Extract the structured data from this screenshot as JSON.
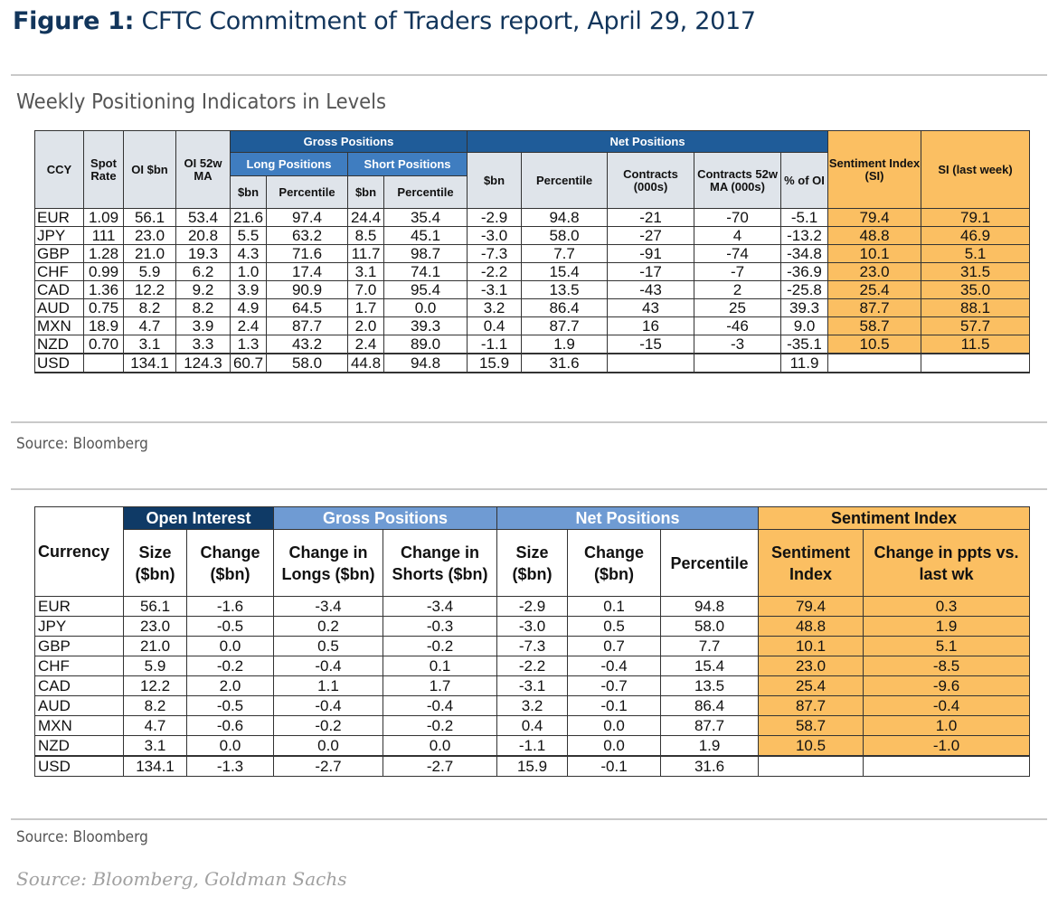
{
  "figure": {
    "label": "Figure 1:",
    "title": "CFTC Commitment of Traders report, April 29, 2017"
  },
  "table1": {
    "subtitle": "Weekly Positioning Indicators in Levels",
    "headers": {
      "ccy": "CCY",
      "spot": "Spot Rate",
      "oi": "OI $bn",
      "oi52": "OI 52w MA",
      "gross": "Gross Positions",
      "net": "Net Positions",
      "long": "Long Positions",
      "short": "Short Positions",
      "sbn": "$bn",
      "percentile": "Percentile",
      "net_sbn": "$bn",
      "net_pct": "Percentile",
      "contracts": "Contracts (000s)",
      "contracts52": "Contracts 52w MA (000s)",
      "pct_oi": "% of OI",
      "si": "Sentiment Index (SI)",
      "si_last": "SI (last week)"
    },
    "rows": [
      [
        "EUR",
        "1.09",
        "56.1",
        "53.4",
        "21.6",
        "97.4",
        "24.4",
        "35.4",
        "-2.9",
        "94.8",
        "-21",
        "-70",
        "-5.1",
        "79.4",
        "79.1"
      ],
      [
        "JPY",
        "111",
        "23.0",
        "20.8",
        "5.5",
        "63.2",
        "8.5",
        "45.1",
        "-3.0",
        "58.0",
        "-27",
        "4",
        "-13.2",
        "48.8",
        "46.9"
      ],
      [
        "GBP",
        "1.28",
        "21.0",
        "19.3",
        "4.3",
        "71.6",
        "11.7",
        "98.7",
        "-7.3",
        "7.7",
        "-91",
        "-74",
        "-34.8",
        "10.1",
        "5.1"
      ],
      [
        "CHF",
        "0.99",
        "5.9",
        "6.2",
        "1.0",
        "17.4",
        "3.1",
        "74.1",
        "-2.2",
        "15.4",
        "-17",
        "-7",
        "-36.9",
        "23.0",
        "31.5"
      ],
      [
        "CAD",
        "1.36",
        "12.2",
        "9.2",
        "3.9",
        "90.9",
        "7.0",
        "95.4",
        "-3.1",
        "13.5",
        "-43",
        "2",
        "-25.8",
        "25.4",
        "35.0"
      ],
      [
        "AUD",
        "0.75",
        "8.2",
        "8.2",
        "4.9",
        "64.5",
        "1.7",
        "0.0",
        "3.2",
        "86.4",
        "43",
        "25",
        "39.3",
        "87.7",
        "88.1"
      ],
      [
        "MXN",
        "18.9",
        "4.7",
        "3.9",
        "2.4",
        "87.7",
        "2.0",
        "39.3",
        "0.4",
        "87.7",
        "16",
        "-46",
        "9.0",
        "58.7",
        "57.7"
      ],
      [
        "NZD",
        "0.70",
        "3.1",
        "3.3",
        "1.3",
        "43.2",
        "2.4",
        "89.0",
        "-1.1",
        "1.9",
        "-15",
        "-3",
        "-35.1",
        "10.5",
        "11.5"
      ]
    ],
    "usd": [
      "USD",
      "",
      "134.1",
      "124.3",
      "60.7",
      "58.0",
      "44.8",
      "94.8",
      "15.9",
      "31.6",
      "",
      "",
      "11.9",
      "",
      ""
    ],
    "source": "Source: Bloomberg"
  },
  "table2": {
    "headers": {
      "currency": "Currency",
      "open_interest": "Open Interest",
      "gross": "Gross Positions",
      "net": "Net Positions",
      "sentiment": "Sentiment Index",
      "size": "Size ($bn)",
      "change": "Change ($bn)",
      "chg_longs": "Change in Longs ($bn)",
      "chg_shorts": "Change in Shorts ($bn)",
      "net_size": "Size ($bn)",
      "net_change": "Change ($bn)",
      "percentile": "Percentile",
      "si": "Sentiment Index",
      "si_change": "Change in ppts vs. last wk"
    },
    "rows": [
      [
        "EUR",
        "56.1",
        "-1.6",
        "-3.4",
        "-3.4",
        "-2.9",
        "0.1",
        "94.8",
        "79.4",
        "0.3"
      ],
      [
        "JPY",
        "23.0",
        "-0.5",
        "0.2",
        "-0.3",
        "-3.0",
        "0.5",
        "58.0",
        "48.8",
        "1.9"
      ],
      [
        "GBP",
        "21.0",
        "0.0",
        "0.5",
        "-0.2",
        "-7.3",
        "0.7",
        "7.7",
        "10.1",
        "5.1"
      ],
      [
        "CHF",
        "5.9",
        "-0.2",
        "-0.4",
        "0.1",
        "-2.2",
        "-0.4",
        "15.4",
        "23.0",
        "-8.5"
      ],
      [
        "CAD",
        "12.2",
        "2.0",
        "1.1",
        "1.7",
        "-3.1",
        "-0.7",
        "13.5",
        "25.4",
        "-9.6"
      ],
      [
        "AUD",
        "8.2",
        "-0.5",
        "-0.4",
        "-0.4",
        "3.2",
        "-0.1",
        "86.4",
        "87.7",
        "-0.4"
      ],
      [
        "MXN",
        "4.7",
        "-0.6",
        "-0.2",
        "-0.2",
        "0.4",
        "0.0",
        "87.7",
        "58.7",
        "1.0"
      ],
      [
        "NZD",
        "3.1",
        "0.0",
        "0.0",
        "0.0",
        "-1.1",
        "0.0",
        "1.9",
        "10.5",
        "-1.0"
      ]
    ],
    "usd": [
      "USD",
      "134.1",
      "-1.3",
      "-2.7",
      "-2.7",
      "15.9",
      "-0.1",
      "31.6",
      "",
      ""
    ],
    "source": "Source: Bloomberg"
  },
  "footer": "Source: Bloomberg, Goldman Sachs"
}
